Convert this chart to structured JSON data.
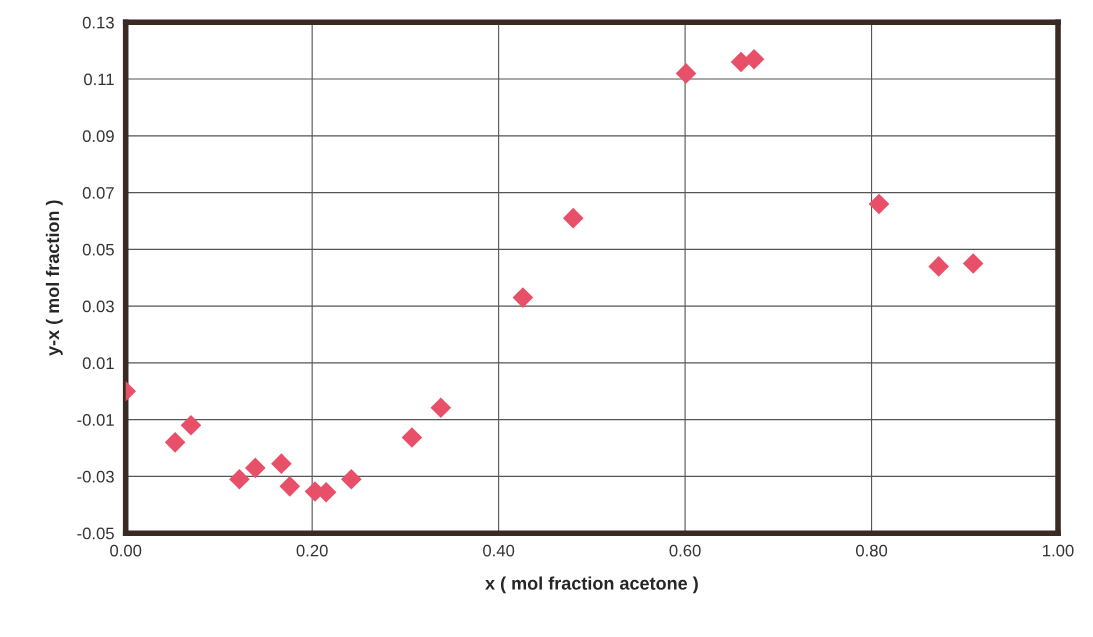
{
  "chart_data": {
    "type": "scatter",
    "xlabel": "x ( mol fraction acetone )",
    "ylabel": "y-x ( mol fraction )",
    "x": [
      0.0,
      0.053,
      0.07,
      0.122,
      0.139,
      0.167,
      0.176,
      0.203,
      0.215,
      0.242,
      0.307,
      0.338,
      0.426,
      0.48,
      0.601,
      0.66,
      0.674,
      0.808,
      0.872,
      0.909
    ],
    "series": [
      {
        "color": "#e8506a",
        "values": [
          0.0,
          -0.018,
          -0.012,
          -0.031,
          -0.027,
          -0.0255,
          -0.0335,
          -0.0353,
          -0.0356,
          -0.031,
          -0.0163,
          -0.0058,
          0.033,
          0.061,
          0.112,
          0.116,
          0.117,
          0.066,
          0.044,
          0.045
        ]
      }
    ],
    "xlim": [
      0,
      1
    ],
    "xticks": [
      {
        "value": 0,
        "label": "0.00"
      },
      {
        "value": 0.2,
        "label": "0.20"
      },
      {
        "value": 0.4,
        "label": "0.40"
      },
      {
        "value": 0.6,
        "label": "0.60"
      },
      {
        "value": 0.8,
        "label": "0.80"
      },
      {
        "value": 1,
        "label": "1.00"
      }
    ],
    "ylim": [
      -0.05,
      0.13
    ],
    "yticks": [
      -0.05,
      -0.03,
      -0.01,
      0.01,
      0.03,
      0.05,
      0.07,
      0.09,
      0.11,
      0.13
    ],
    "grid": true,
    "marker": "diamond",
    "legend": false
  }
}
